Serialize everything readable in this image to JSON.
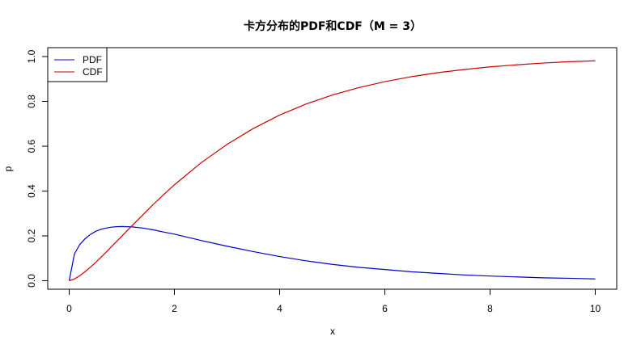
{
  "chart_data": {
    "type": "line",
    "title": "卡方分布的PDF和CDF（M = 3）",
    "xlabel": "x",
    "ylabel": "p",
    "xlim": [
      0,
      10
    ],
    "ylim": [
      0,
      1
    ],
    "x_ticks": [
      0,
      2,
      4,
      6,
      8,
      10
    ],
    "y_ticks": [
      0.0,
      0.2,
      0.4,
      0.6,
      0.8,
      1.0
    ],
    "x_tick_labels": [
      "0",
      "2",
      "4",
      "6",
      "8",
      "10"
    ],
    "y_tick_labels": [
      "0.0",
      "0.2",
      "0.4",
      "0.6",
      "0.8",
      "1.0"
    ],
    "grid": false,
    "legend_position": "top-left",
    "x": [
      0,
      0.1,
      0.2,
      0.3,
      0.4,
      0.5,
      0.6,
      0.7,
      0.8,
      0.9,
      1.0,
      1.2,
      1.4,
      1.6,
      1.8,
      2.0,
      2.5,
      3.0,
      3.5,
      4.0,
      4.5,
      5.0,
      5.5,
      6.0,
      6.5,
      7.0,
      7.5,
      8.0,
      8.5,
      9.0,
      9.5,
      10.0
    ],
    "series": [
      {
        "name": "PDF",
        "color": "#0000cc",
        "values": [
          0,
          0.12,
          0.161,
          0.187,
          0.206,
          0.22,
          0.229,
          0.235,
          0.239,
          0.241,
          0.242,
          0.24,
          0.235,
          0.227,
          0.217,
          0.208,
          0.18,
          0.154,
          0.13,
          0.108,
          0.089,
          0.073,
          0.06,
          0.05,
          0.04,
          0.033,
          0.026,
          0.021,
          0.017,
          0.013,
          0.011,
          0.008
        ]
      },
      {
        "name": "CDF",
        "color": "#cc0000",
        "values": [
          0,
          0.008,
          0.022,
          0.04,
          0.06,
          0.081,
          0.104,
          0.127,
          0.151,
          0.175,
          0.199,
          0.247,
          0.294,
          0.341,
          0.385,
          0.428,
          0.525,
          0.608,
          0.679,
          0.739,
          0.788,
          0.828,
          0.861,
          0.888,
          0.91,
          0.928,
          0.942,
          0.954,
          0.963,
          0.971,
          0.977,
          0.981
        ]
      }
    ]
  }
}
